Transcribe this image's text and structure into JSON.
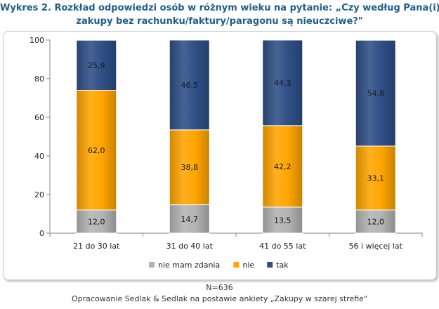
{
  "title_line1": "Wykres 2. Rozkład odpowiedzi osób w różnym wieku na pytanie: „Czy według Pana(i)",
  "title_line2": "zakupy bez rachunku/faktury/paragonu  są nieuczciwe?\"",
  "footer": {
    "n": "N=636",
    "source": "Opracowanie Sedlak & Sedlak na postawie ankiety „Zakupy w szarej strefie\""
  },
  "chart_data": {
    "type": "bar",
    "stacked": true,
    "categories": [
      "21 do 30 lat",
      "31 do 40 lat",
      "41 do 55 lat",
      "56 i więcej lat"
    ],
    "series": [
      {
        "name": "nie mam zdania",
        "color": "#b3b3b3",
        "values": [
          12.0,
          14.7,
          13.5,
          12.0
        ],
        "labels": [
          "12,0",
          "14,7",
          "13,5",
          "12,0"
        ]
      },
      {
        "name": "nie",
        "color": "#ffa500",
        "values": [
          62.0,
          38.8,
          42.2,
          33.1
        ],
        "labels": [
          "62,0",
          "38,8",
          "42,2",
          "33,1"
        ]
      },
      {
        "name": "tak",
        "color": "#2e4f86",
        "values": [
          25.9,
          46.5,
          44.3,
          54.8
        ],
        "labels": [
          "25,9",
          "46,5",
          "44,3",
          "54,8"
        ]
      }
    ],
    "ylim": [
      0,
      100
    ],
    "yticks": [
      "0",
      "20",
      "40",
      "60",
      "80",
      "100"
    ],
    "grid": false,
    "legend_position": "bottom"
  }
}
